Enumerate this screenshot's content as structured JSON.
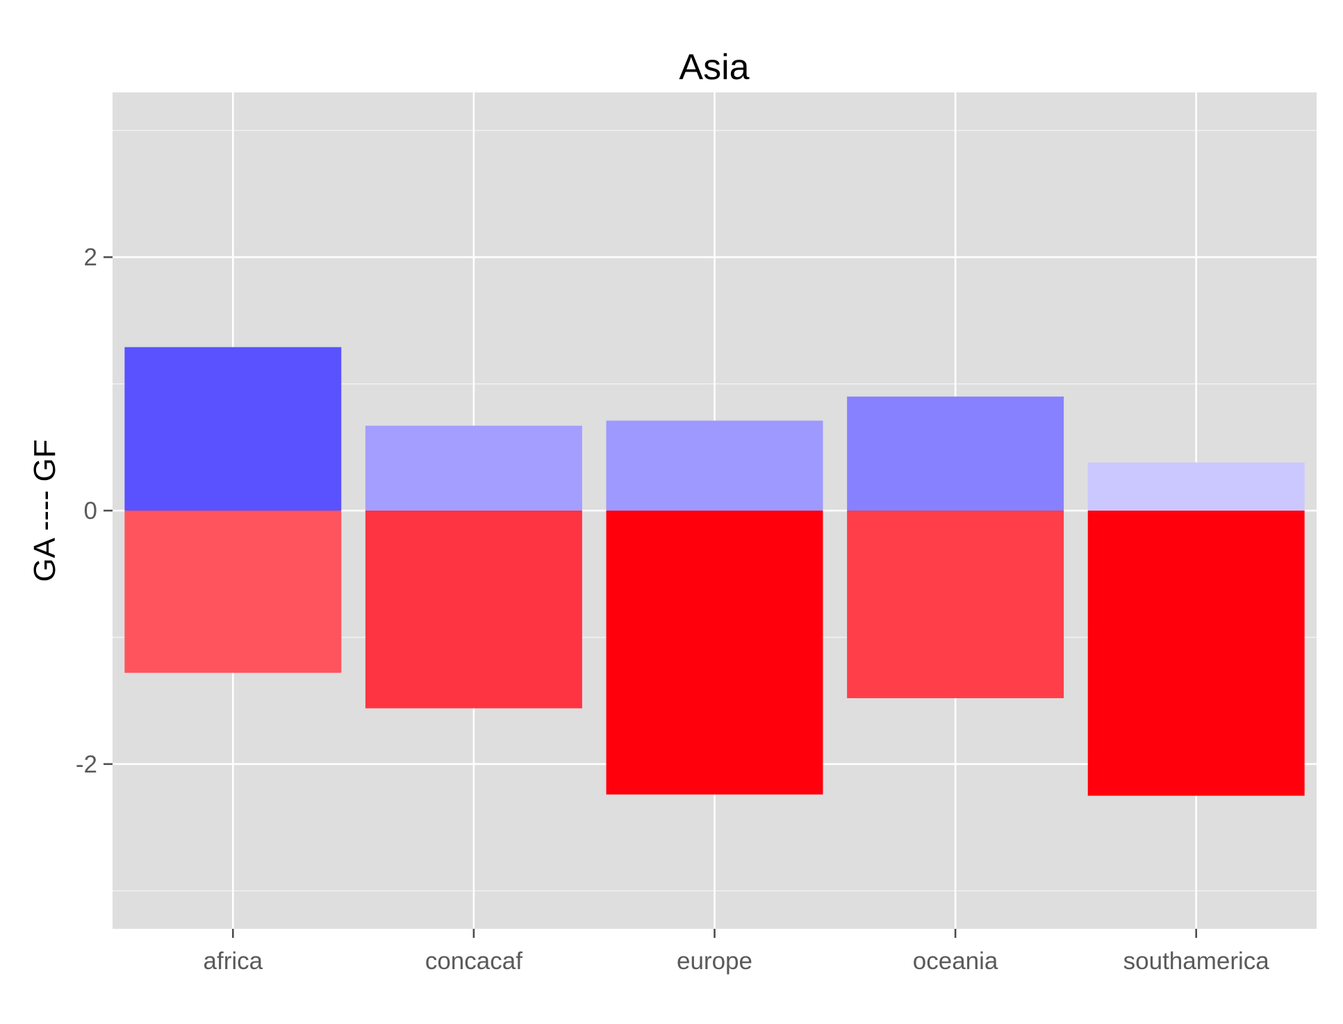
{
  "chart_data": {
    "type": "bar",
    "title": "Asia",
    "xlabel": "",
    "ylabel": "GA ---- GF",
    "categories": [
      "africa",
      "concacaf",
      "europe",
      "oceania",
      "southamerica"
    ],
    "series": [
      {
        "values": [
          1.29,
          0.67,
          0.71,
          0.9,
          0.38
        ],
        "colors": [
          "#5a52ff",
          "#a39eff",
          "#9e99ff",
          "#8781ff",
          "#cac8ff"
        ]
      },
      {
        "values": [
          -1.28,
          -1.56,
          -2.24,
          -1.48,
          -2.25
        ],
        "colors": [
          "#ff545d",
          "#ff3442",
          "#ff000c",
          "#ff3e49",
          "#ff000c"
        ]
      }
    ],
    "ylim": [
      -3.3,
      3.3
    ],
    "yticks": [
      -2,
      0,
      2
    ],
    "ytick_labels": [
      "-2",
      "0",
      "2"
    ],
    "grid": true,
    "background": "#dedede",
    "gridcolor": "#ffffff"
  }
}
